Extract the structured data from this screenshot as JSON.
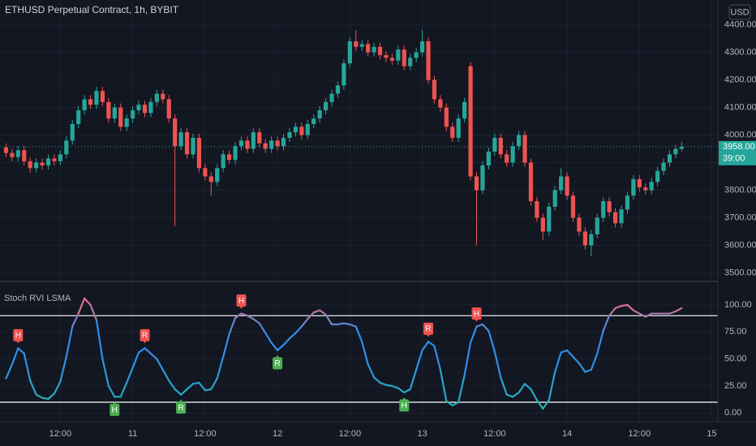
{
  "chart_data": [
    {
      "type": "candlestick",
      "title": "ETHUSD Perpetual Contract, 1h, BYBIT",
      "currency": "USD",
      "up_color": "#26a69a",
      "down_color": "#ef5350",
      "open": [
        3955,
        3935,
        3920,
        3945,
        3905,
        3880,
        3900,
        3890,
        3915,
        3905,
        3930,
        3980,
        4040,
        4090,
        4130,
        4110,
        4160,
        4120,
        4060,
        4100,
        4030,
        4060,
        4090,
        4110,
        4080,
        4120,
        4150,
        4130,
        4060,
        3960,
        4010,
        3930,
        3990,
        3880,
        3850,
        3830,
        3880,
        3930,
        3910,
        3960,
        3980,
        3950,
        4010,
        3970,
        3950,
        3980,
        3960,
        3990,
        4010,
        4030,
        4000,
        4040,
        4060,
        4090,
        4120,
        4150,
        4180,
        4260,
        4340,
        4320,
        4330,
        4300,
        4320,
        4290,
        4280,
        4270,
        4310,
        4250,
        4280,
        4300,
        4340,
        4200,
        4130,
        4100,
        4030,
        3990,
        4060,
        4250,
        3850,
        3800,
        3890,
        3940,
        3990,
        3930,
        3900,
        3960,
        4000,
        3900,
        3760,
        3700,
        3650,
        3740,
        3800,
        3850,
        3780,
        3700,
        3650,
        3600,
        3640,
        3700,
        3760,
        3720,
        3680,
        3730,
        3780,
        3840,
        3810,
        3800,
        3830,
        3870,
        3900,
        3930,
        3950
      ],
      "high": [
        3970,
        3950,
        3960,
        3960,
        3920,
        3915,
        3915,
        3930,
        3930,
        3945,
        3995,
        4055,
        4105,
        4145,
        4145,
        4175,
        4175,
        4135,
        4115,
        4115,
        4075,
        4105,
        4125,
        4125,
        4135,
        4165,
        4165,
        4145,
        4075,
        4025,
        4025,
        4005,
        4005,
        3895,
        3865,
        3895,
        3945,
        3945,
        3975,
        3995,
        3995,
        4025,
        4025,
        3985,
        3995,
        3995,
        4005,
        4025,
        4045,
        4045,
        4055,
        4075,
        4105,
        4135,
        4165,
        4195,
        4275,
        4355,
        4380,
        4345,
        4345,
        4335,
        4335,
        4305,
        4295,
        4325,
        4325,
        4295,
        4315,
        4380,
        4355,
        4215,
        4145,
        4115,
        4045,
        4075,
        4135,
        4265,
        3865,
        3905,
        3955,
        4005,
        4005,
        3945,
        3975,
        4015,
        4015,
        3915,
        3775,
        3715,
        3755,
        3815,
        3880,
        3865,
        3795,
        3715,
        3665,
        3655,
        3715,
        3775,
        3775,
        3735,
        3745,
        3795,
        3855,
        3855,
        3825,
        3845,
        3885,
        3915,
        3945,
        3965,
        3975
      ],
      "low": [
        3920,
        3905,
        3905,
        3890,
        3865,
        3865,
        3875,
        3875,
        3890,
        3890,
        3915,
        3965,
        4025,
        4075,
        4095,
        4095,
        4105,
        4045,
        4045,
        4015,
        4015,
        4045,
        4075,
        4065,
        4065,
        4105,
        4115,
        4045,
        3670,
        3945,
        3915,
        3915,
        3865,
        3835,
        3780,
        3815,
        3865,
        3895,
        3895,
        3945,
        3935,
        3935,
        3955,
        3935,
        3935,
        3945,
        3945,
        3975,
        3995,
        3985,
        3985,
        4025,
        4045,
        4075,
        4105,
        4135,
        4165,
        4245,
        4305,
        4305,
        4285,
        4285,
        4275,
        4265,
        4255,
        4255,
        4235,
        4235,
        4265,
        4285,
        4185,
        4115,
        4085,
        4015,
        3975,
        3975,
        4045,
        3835,
        3600,
        3785,
        3875,
        3925,
        3915,
        3885,
        3885,
        3945,
        3885,
        3745,
        3685,
        3620,
        3635,
        3725,
        3785,
        3765,
        3685,
        3635,
        3585,
        3560,
        3625,
        3685,
        3705,
        3665,
        3665,
        3715,
        3765,
        3795,
        3785,
        3785,
        3815,
        3855,
        3885,
        3915,
        3940
      ],
      "close": [
        3935,
        3920,
        3945,
        3905,
        3880,
        3900,
        3890,
        3915,
        3905,
        3930,
        3980,
        4040,
        4090,
        4130,
        4110,
        4160,
        4120,
        4060,
        4100,
        4030,
        4060,
        4090,
        4110,
        4080,
        4120,
        4150,
        4130,
        4060,
        3960,
        4010,
        3930,
        3990,
        3880,
        3850,
        3830,
        3880,
        3930,
        3910,
        3960,
        3980,
        3950,
        4010,
        3970,
        3950,
        3980,
        3960,
        3990,
        4010,
        4030,
        4000,
        4040,
        4060,
        4090,
        4120,
        4150,
        4180,
        4260,
        4340,
        4320,
        4330,
        4300,
        4320,
        4290,
        4280,
        4270,
        4310,
        4250,
        4280,
        4300,
        4340,
        4200,
        4130,
        4100,
        4030,
        3990,
        4060,
        4120,
        3850,
        3800,
        3890,
        3940,
        3990,
        3930,
        3900,
        3960,
        4000,
        3900,
        3760,
        3700,
        3650,
        3740,
        3800,
        3850,
        3780,
        3700,
        3650,
        3600,
        3640,
        3700,
        3760,
        3720,
        3680,
        3730,
        3780,
        3840,
        3810,
        3800,
        3830,
        3870,
        3900,
        3930,
        3950,
        3958
      ],
      "last_price_label": "3958.00",
      "countdown": "39:00",
      "xlim": [
        -1,
        118
      ],
      "ylim": [
        3475,
        4490
      ],
      "yticks": [
        {
          "value": 3500,
          "label": "3500.00"
        },
        {
          "value": 3600,
          "label": "3600.00"
        },
        {
          "value": 3700,
          "label": "3700.00"
        },
        {
          "value": 3800,
          "label": "3800.00"
        },
        {
          "value": 3900,
          "label": "3900.00"
        },
        {
          "value": 4000,
          "label": "4000.00"
        },
        {
          "value": 4100,
          "label": "4100.00"
        },
        {
          "value": 4200,
          "label": "4200.00"
        },
        {
          "value": 4300,
          "label": "4300.00"
        },
        {
          "value": 4400,
          "label": "4400.00"
        }
      ],
      "grid": true
    },
    {
      "type": "line",
      "title": "Stoch RVI LSMA",
      "low_color": "#22b8a8",
      "mid_color": "#2f8eea",
      "high_color": "#e0708a",
      "values": [
        32,
        45,
        60,
        55,
        30,
        17,
        14,
        13,
        18,
        29,
        52,
        80,
        92,
        106,
        100,
        86,
        50,
        25,
        15,
        15,
        28,
        42,
        56,
        60,
        55,
        50,
        40,
        30,
        22,
        17,
        22,
        27,
        28,
        21,
        22,
        32,
        52,
        73,
        88,
        92,
        90,
        87,
        83,
        74,
        65,
        58,
        63,
        69,
        74,
        80,
        87,
        93,
        95,
        91,
        82,
        82,
        83,
        82,
        80,
        66,
        45,
        33,
        28,
        26,
        25,
        23,
        19,
        22,
        40,
        58,
        66,
        62,
        40,
        11,
        7,
        10,
        35,
        65,
        80,
        82,
        76,
        57,
        33,
        17,
        15,
        19,
        27,
        22,
        12,
        4,
        12,
        38,
        56,
        58,
        52,
        46,
        38,
        40,
        55,
        76,
        90,
        97,
        99,
        100,
        95,
        92,
        89,
        92,
        92,
        92,
        92,
        94,
        97
      ],
      "hlines": [
        90,
        10
      ],
      "hline_color": "#ffffff",
      "signals": [
        {
          "label": "H",
          "x": 2,
          "side": "top"
        },
        {
          "label": "R",
          "x": 23,
          "side": "top"
        },
        {
          "label": "H",
          "x": 39,
          "side": "top"
        },
        {
          "label": "R",
          "x": 70,
          "side": "top"
        },
        {
          "label": "H",
          "x": 78,
          "side": "top"
        },
        {
          "label": "H",
          "x": 18,
          "side": "bottom"
        },
        {
          "label": "R",
          "x": 29,
          "side": "bottom"
        },
        {
          "label": "R",
          "x": 45,
          "side": "bottom"
        },
        {
          "label": "H",
          "x": 66,
          "side": "bottom"
        }
      ],
      "top_signal_color": "#f05350",
      "bottom_signal_color": "#4caf50",
      "xlim": [
        -1,
        118
      ],
      "ylim": [
        -8,
        121
      ],
      "yticks": [
        {
          "value": 0,
          "label": "0.00"
        },
        {
          "value": 25,
          "label": "25.00"
        },
        {
          "value": 50,
          "label": "50.00"
        },
        {
          "value": 75,
          "label": "75.00"
        },
        {
          "value": 100,
          "label": "100.00"
        }
      ],
      "xticks": [
        {
          "value": 9,
          "label": "12:00"
        },
        {
          "value": 21,
          "label": "11"
        },
        {
          "value": 33,
          "label": "12:00"
        },
        {
          "value": 45,
          "label": "12"
        },
        {
          "value": 57,
          "label": "12:00"
        },
        {
          "value": 69,
          "label": "13"
        },
        {
          "value": 81,
          "label": "12:00"
        },
        {
          "value": 93,
          "label": "14"
        },
        {
          "value": 105,
          "label": "12:00"
        },
        {
          "value": 117,
          "label": "15"
        }
      ],
      "grid": true
    }
  ]
}
